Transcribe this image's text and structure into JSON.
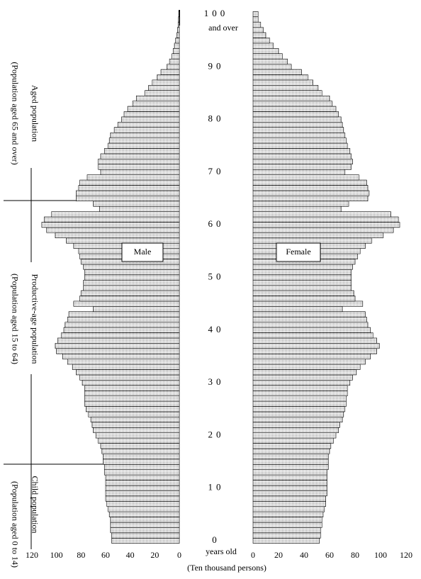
{
  "chart_data": {
    "type": "population_pyramid",
    "categories": [
      "0",
      null,
      null,
      null,
      null,
      null,
      null,
      null,
      null,
      null,
      "10",
      null,
      null,
      null,
      null,
      null,
      null,
      null,
      null,
      null,
      "20",
      null,
      null,
      null,
      null,
      null,
      null,
      null,
      null,
      null,
      "30",
      null,
      null,
      null,
      null,
      null,
      null,
      null,
      null,
      null,
      "40",
      null,
      null,
      null,
      null,
      null,
      null,
      null,
      null,
      null,
      "50",
      null,
      null,
      null,
      null,
      null,
      null,
      null,
      null,
      null,
      "60",
      null,
      null,
      null,
      null,
      null,
      null,
      null,
      null,
      null,
      "70",
      null,
      null,
      null,
      null,
      null,
      null,
      null,
      null,
      null,
      "80",
      null,
      null,
      null,
      null,
      null,
      null,
      null,
      null,
      null,
      "90",
      null,
      null,
      null,
      null,
      null,
      null,
      null,
      null,
      null,
      "100"
    ],
    "top_note": "and over",
    "age_unit": "years old",
    "x_label": "(Ten thousand persons)",
    "xlim": [
      0,
      120
    ],
    "xticks": [
      0,
      20,
      40,
      60,
      80,
      100,
      120
    ],
    "series": [
      {
        "name": "Male",
        "color": "#ffffff",
        "values": [
          55,
          55,
          56,
          56,
          56,
          57,
          58,
          59,
          60,
          60,
          60,
          60,
          60,
          61,
          61,
          62,
          62,
          63,
          64,
          66,
          68,
          70,
          71,
          72,
          74,
          76,
          77,
          77,
          77,
          77,
          79,
          81,
          84,
          87,
          91,
          95,
          100,
          101,
          99,
          96,
          94,
          93,
          91,
          90,
          70,
          86,
          81,
          80,
          78,
          78,
          77,
          77,
          78,
          80,
          81,
          82,
          86,
          92,
          101,
          108,
          112,
          110,
          104,
          65,
          70,
          84,
          84,
          82,
          81,
          75,
          64,
          66,
          66,
          64,
          61,
          58,
          57,
          56,
          53,
          50,
          47,
          45,
          42,
          38,
          35,
          28,
          25,
          22,
          18,
          15,
          10,
          8,
          6,
          5,
          4,
          3,
          2,
          1.5,
          1,
          0.7,
          0.5
        ]
      },
      {
        "name": "Female",
        "color": "#ffffff",
        "values": [
          52,
          53,
          53,
          54,
          54,
          55,
          56,
          57,
          57,
          58,
          58,
          58,
          58,
          58,
          59,
          59,
          59,
          60,
          61,
          63,
          65,
          67,
          68,
          70,
          71,
          72,
          73,
          73,
          74,
          74,
          76,
          78,
          81,
          84,
          88,
          92,
          97,
          99,
          97,
          94,
          92,
          90,
          89,
          88,
          70,
          86,
          80,
          79,
          77,
          77,
          77,
          77,
          78,
          80,
          82,
          84,
          88,
          93,
          102,
          110,
          115,
          114,
          108,
          69,
          75,
          90,
          91,
          90,
          89,
          83,
          72,
          77,
          78,
          77,
          76,
          74,
          73,
          72,
          71,
          70,
          69,
          67,
          65,
          62,
          60,
          54,
          51,
          47,
          43,
          38,
          30,
          27,
          23,
          20,
          16,
          13,
          10,
          8,
          6,
          4,
          4
        ]
      }
    ],
    "annotations": [
      "Aged population",
      "(Population aged 65 and over)",
      "Productive-age population",
      "(Population aged 15 to 64)",
      "Child population",
      "(Population aged 0 to 14)"
    ]
  }
}
